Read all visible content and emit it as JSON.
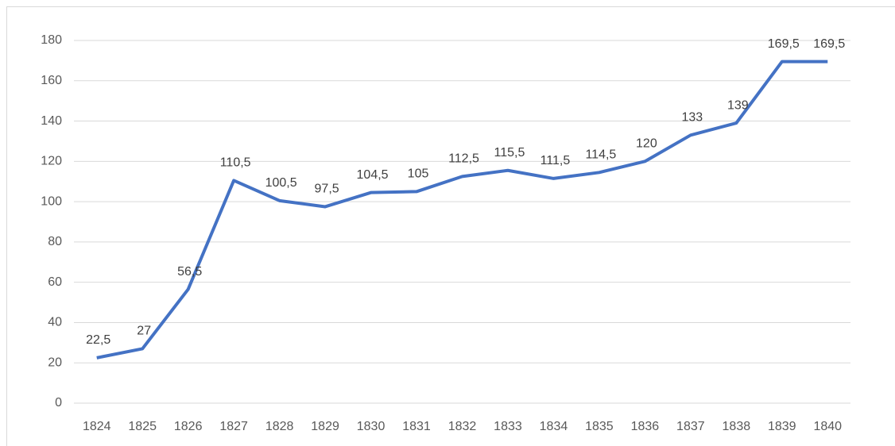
{
  "chart_data": {
    "type": "line",
    "categories": [
      "1824",
      "1825",
      "1826",
      "1827",
      "1828",
      "1829",
      "1830",
      "1831",
      "1832",
      "1833",
      "1834",
      "1835",
      "1836",
      "1837",
      "1838",
      "1839",
      "1840"
    ],
    "series": [
      {
        "color": "#4472c4",
        "values": [
          22.5,
          27,
          56.5,
          110.5,
          100.5,
          97.5,
          104.5,
          105,
          112.5,
          115.5,
          111.5,
          114.5,
          120,
          133,
          139,
          169.5,
          169.5
        ],
        "value_labels": [
          "22,5",
          "27",
          "56,5",
          "110,5",
          "100,5",
          "97,5",
          "104,5",
          "105",
          "112,5",
          "115,5",
          "111,5",
          "114,5",
          "120",
          "133",
          "139",
          "169,5",
          "169,5"
        ]
      }
    ],
    "ylim": [
      0,
      180
    ],
    "yticks": [
      0,
      20,
      40,
      60,
      80,
      100,
      120,
      140,
      160,
      180
    ],
    "grid": true
  }
}
